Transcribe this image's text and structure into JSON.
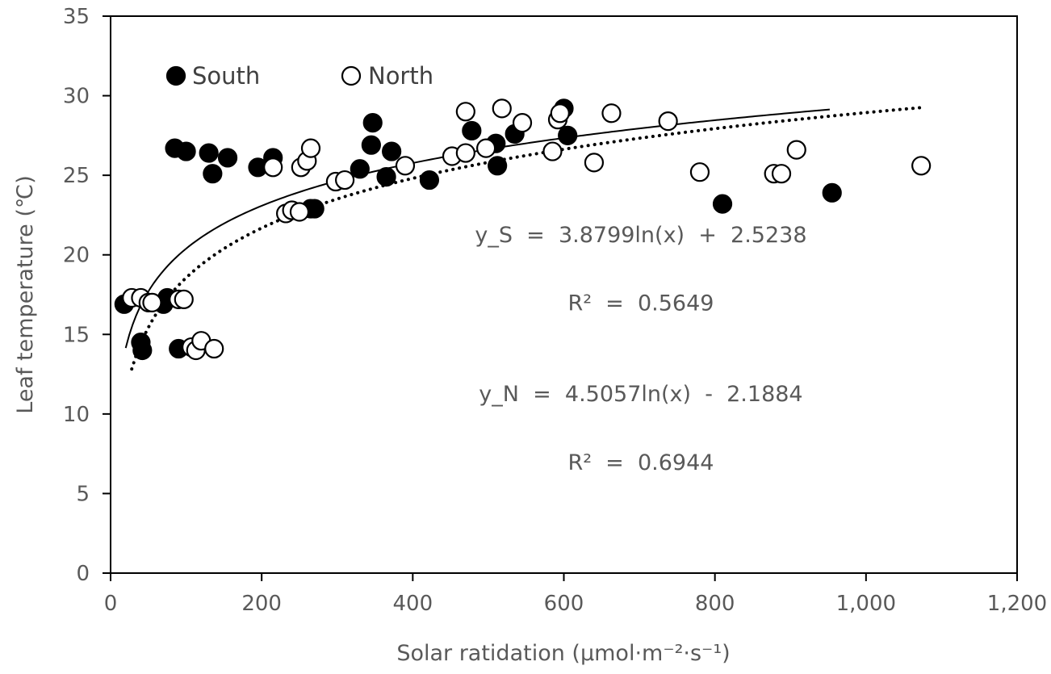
{
  "chart_data": {
    "type": "scatter",
    "title": "",
    "xlabel": "Solar ratidation (μmol·m⁻²·s⁻¹)",
    "ylabel": "Leaf temperature (℃)",
    "xlim": [
      0,
      1200
    ],
    "ylim": [
      0,
      35
    ],
    "x_ticks": [
      0,
      200,
      400,
      600,
      800,
      1000,
      1200
    ],
    "x_tick_labels": [
      "0",
      "200",
      "400",
      "600",
      "800",
      "1,000",
      "1,200"
    ],
    "y_ticks": [
      0,
      5,
      10,
      15,
      20,
      25,
      30,
      35
    ],
    "y_tick_labels": [
      "0",
      "5",
      "10",
      "15",
      "20",
      "25",
      "30",
      "35"
    ],
    "grid": false,
    "legend_placement": "top-left",
    "series": [
      {
        "name": "South",
        "marker": "filled-circle",
        "color": "#000000",
        "points": [
          [
            18,
            16.9
          ],
          [
            40,
            14.5
          ],
          [
            42,
            14.0
          ],
          [
            75,
            17.3
          ],
          [
            70,
            16.9
          ],
          [
            90,
            14.1
          ],
          [
            85,
            26.7
          ],
          [
            100,
            26.5
          ],
          [
            130,
            26.4
          ],
          [
            135,
            25.1
          ],
          [
            155,
            26.1
          ],
          [
            195,
            25.5
          ],
          [
            215,
            26.1
          ],
          [
            265,
            22.9
          ],
          [
            270,
            22.9
          ],
          [
            330,
            25.4
          ],
          [
            345,
            26.9
          ],
          [
            347,
            28.3
          ],
          [
            365,
            24.9
          ],
          [
            372,
            26.5
          ],
          [
            422,
            24.7
          ],
          [
            478,
            27.8
          ],
          [
            510,
            27.0
          ],
          [
            512,
            25.6
          ],
          [
            535,
            27.6
          ],
          [
            600,
            29.2
          ],
          [
            605,
            27.5
          ],
          [
            810,
            23.2
          ],
          [
            955,
            23.9
          ]
        ]
      },
      {
        "name": "North",
        "marker": "open-circle",
        "color": "#000000",
        "points": [
          [
            28,
            17.3
          ],
          [
            40,
            17.3
          ],
          [
            50,
            17.0
          ],
          [
            55,
            17.0
          ],
          [
            90,
            17.2
          ],
          [
            97,
            17.2
          ],
          [
            107,
            14.2
          ],
          [
            113,
            14.0
          ],
          [
            120,
            14.6
          ],
          [
            137,
            14.1
          ],
          [
            215,
            25.5
          ],
          [
            232,
            22.6
          ],
          [
            240,
            22.8
          ],
          [
            250,
            22.7
          ],
          [
            252,
            25.5
          ],
          [
            260,
            25.9
          ],
          [
            265,
            26.7
          ],
          [
            298,
            24.6
          ],
          [
            310,
            24.7
          ],
          [
            390,
            25.6
          ],
          [
            452,
            26.2
          ],
          [
            470,
            26.4
          ],
          [
            470,
            29.0
          ],
          [
            497,
            26.7
          ],
          [
            518,
            29.2
          ],
          [
            545,
            28.3
          ],
          [
            585,
            26.5
          ],
          [
            592,
            28.5
          ],
          [
            595,
            28.9
          ],
          [
            640,
            25.8
          ],
          [
            663,
            28.9
          ],
          [
            738,
            28.4
          ],
          [
            780,
            25.2
          ],
          [
            878,
            25.1
          ],
          [
            888,
            25.1
          ],
          [
            908,
            26.6
          ],
          [
            1073,
            25.6
          ]
        ]
      }
    ],
    "trendlines": [
      {
        "series": "South",
        "type": "log",
        "a": 3.8799,
        "b": 2.5238,
        "x_range": [
          20,
          952
        ],
        "style": "solid"
      },
      {
        "series": "North",
        "type": "log",
        "a": 4.5057,
        "b": -2.1884,
        "x_range": [
          28,
          1075
        ],
        "style": "dotted"
      }
    ],
    "annotations": [
      {
        "id": "eq-south",
        "text": "y_S  =  3.8799ln(x)  +  2.5238",
        "x": 702,
        "y": 20.8
      },
      {
        "id": "r2-south",
        "text": "R²  =  0.5649",
        "x": 702,
        "y": 16.5
      },
      {
        "id": "eq-north",
        "text": "y_N  =  4.5057ln(x)  -  2.1884",
        "x": 702,
        "y": 10.8
      },
      {
        "id": "r2-north",
        "text": "R²  =  0.6944",
        "x": 702,
        "y": 6.5
      }
    ],
    "legend": [
      {
        "label": "South",
        "marker": "filled-circle"
      },
      {
        "label": "North",
        "marker": "open-circle"
      }
    ]
  }
}
